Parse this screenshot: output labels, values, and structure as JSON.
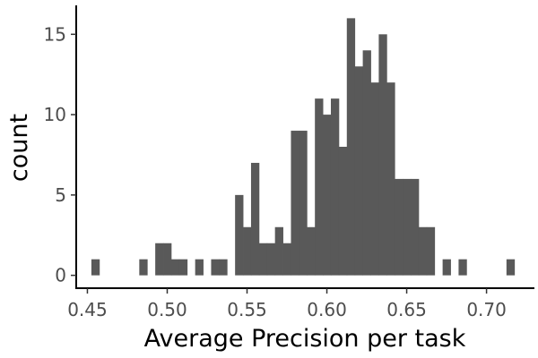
{
  "chart_data": {
    "type": "bar",
    "subtype": "histogram",
    "xlabel": "Average Precision per task",
    "ylabel": "count",
    "xlim": [
      0.443,
      0.73
    ],
    "ylim": [
      -0.8,
      16.8
    ],
    "bin_width": 0.005,
    "xticks": [
      {
        "value": 0.45,
        "label": "0.45"
      },
      {
        "value": 0.5,
        "label": "0.50"
      },
      {
        "value": 0.55,
        "label": "0.55"
      },
      {
        "value": 0.6,
        "label": "0.60"
      },
      {
        "value": 0.65,
        "label": "0.65"
      },
      {
        "value": 0.7,
        "label": "0.70"
      }
    ],
    "yticks": [
      {
        "value": 0,
        "label": "0"
      },
      {
        "value": 5,
        "label": "5"
      },
      {
        "value": 10,
        "label": "10"
      },
      {
        "value": 15,
        "label": "15"
      }
    ],
    "bar_color": "#595959",
    "bins": [
      {
        "x": 0.455,
        "count": 1
      },
      {
        "x": 0.485,
        "count": 1
      },
      {
        "x": 0.495,
        "count": 2
      },
      {
        "x": 0.5,
        "count": 2
      },
      {
        "x": 0.505,
        "count": 1
      },
      {
        "x": 0.51,
        "count": 1
      },
      {
        "x": 0.52,
        "count": 1
      },
      {
        "x": 0.53,
        "count": 1
      },
      {
        "x": 0.535,
        "count": 1
      },
      {
        "x": 0.545,
        "count": 5
      },
      {
        "x": 0.55,
        "count": 3
      },
      {
        "x": 0.555,
        "count": 7
      },
      {
        "x": 0.56,
        "count": 2
      },
      {
        "x": 0.565,
        "count": 2
      },
      {
        "x": 0.57,
        "count": 3
      },
      {
        "x": 0.575,
        "count": 2
      },
      {
        "x": 0.58,
        "count": 9
      },
      {
        "x": 0.585,
        "count": 9
      },
      {
        "x": 0.59,
        "count": 3
      },
      {
        "x": 0.595,
        "count": 11
      },
      {
        "x": 0.6,
        "count": 10
      },
      {
        "x": 0.605,
        "count": 11
      },
      {
        "x": 0.61,
        "count": 8
      },
      {
        "x": 0.615,
        "count": 16
      },
      {
        "x": 0.62,
        "count": 13
      },
      {
        "x": 0.625,
        "count": 14
      },
      {
        "x": 0.63,
        "count": 12
      },
      {
        "x": 0.635,
        "count": 15
      },
      {
        "x": 0.64,
        "count": 12
      },
      {
        "x": 0.645,
        "count": 6
      },
      {
        "x": 0.65,
        "count": 6
      },
      {
        "x": 0.655,
        "count": 6
      },
      {
        "x": 0.66,
        "count": 3
      },
      {
        "x": 0.665,
        "count": 3
      },
      {
        "x": 0.675,
        "count": 1
      },
      {
        "x": 0.685,
        "count": 1
      },
      {
        "x": 0.715,
        "count": 1
      }
    ]
  }
}
